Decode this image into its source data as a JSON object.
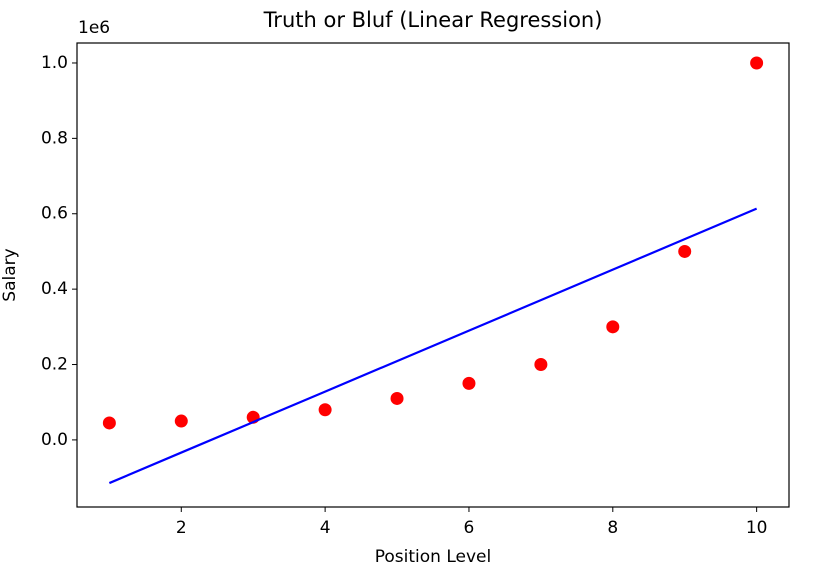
{
  "chart_data": {
    "type": "scatter",
    "title": "Truth or Bluf (Linear Regression)",
    "x_label": "Position Level",
    "y_label": "Salary",
    "y_offset_label": "1e6",
    "x": [
      1,
      2,
      3,
      4,
      5,
      6,
      7,
      8,
      9,
      10
    ],
    "series": [
      {
        "type": "scatter",
        "color": "#ff0000",
        "values": [
          0.045,
          0.05,
          0.06,
          0.08,
          0.11,
          0.15,
          0.2,
          0.3,
          0.5,
          1.0
        ]
      },
      {
        "type": "line",
        "color": "#0000ff",
        "values": [
          -0.1145,
          -0.0336,
          0.0473,
          0.1282,
          0.2091,
          0.2899,
          0.3708,
          0.4517,
          0.5326,
          0.6135
        ]
      }
    ],
    "xlim": [
      0.55,
      10.45
    ],
    "ylim": [
      -0.178,
      1.053
    ],
    "xticks": [
      2,
      4,
      6,
      8,
      10
    ],
    "yticks": [
      {
        "value": 0,
        "label": "0.0"
      },
      0.2,
      0.4,
      0.6,
      0.8,
      {
        "value": 1,
        "label": "1.0"
      }
    ]
  }
}
